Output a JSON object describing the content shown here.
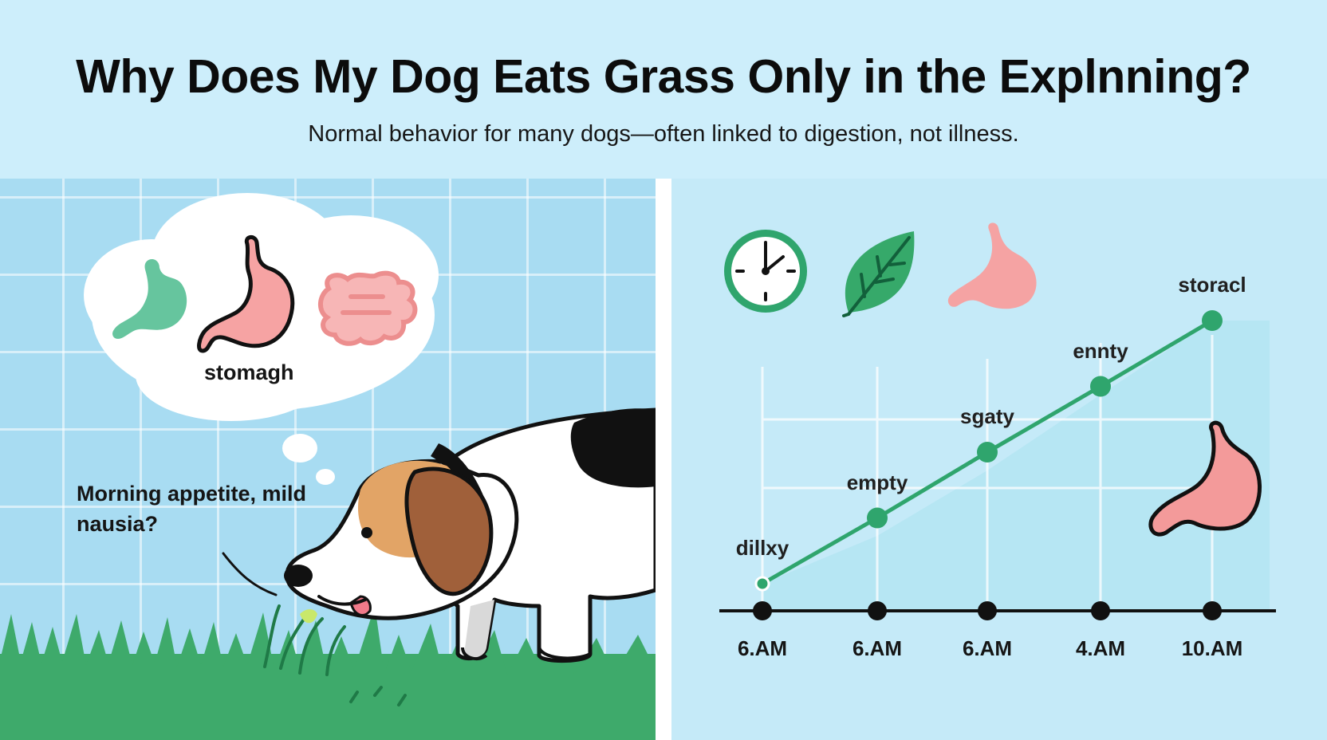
{
  "header": {
    "title": "Why Does My Dog Eats Grass Only in the Explnning?",
    "subtitle": "Normal behavior for many dogs—often linked to digestion, not illness."
  },
  "left_panel": {
    "thought_bubble_label": "stomagh",
    "dog_caption": "Morning appetite, mild nausia?",
    "icons": [
      "stomach-icon-green",
      "stomach-icon-pink",
      "intestine-icon"
    ]
  },
  "right_panel": {
    "icons": [
      "clock-icon",
      "leaf-icon",
      "stomach-icon"
    ],
    "colors": {
      "line": "#2fa56d",
      "stomach": "#f39a9a",
      "accent": "#2fa56d"
    }
  },
  "chart_data": {
    "type": "line",
    "x": [
      "6.AM",
      "6.AM",
      "6.AM",
      "4.AM",
      "10.AM"
    ],
    "point_labels": [
      "dillxy",
      "empty",
      "sgaty",
      "ennty",
      "storacl"
    ],
    "values": [
      1,
      2,
      3,
      4,
      5
    ],
    "grid": true
  }
}
